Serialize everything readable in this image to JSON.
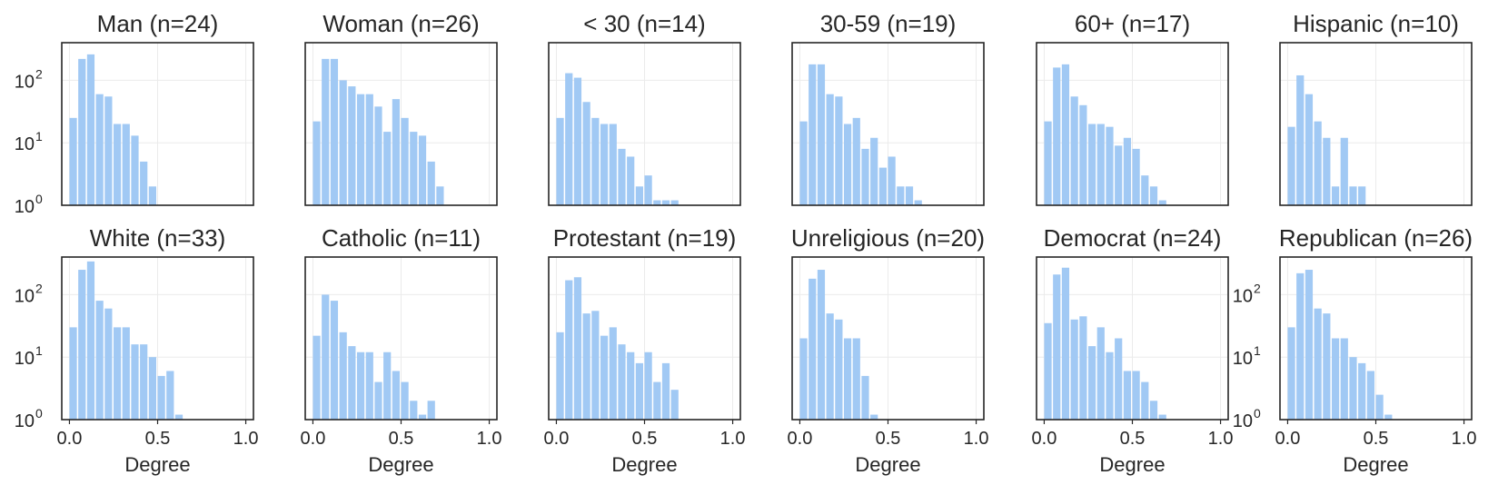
{
  "colors": {
    "bar": "#a1c9f4",
    "frame": "#262626",
    "grid": "#ebebeb"
  },
  "chart_data": [
    {
      "type": "bar",
      "title": "Man (n=24)",
      "xlabel": "",
      "ylabel": "",
      "yscale": "log",
      "xlim": [
        0,
        1
      ],
      "ylim": [
        1,
        400
      ],
      "grid": true,
      "bin_width": 0.05,
      "x_start": 0.0,
      "values": [
        25,
        220,
        260,
        60,
        55,
        20,
        20,
        13,
        5,
        2
      ],
      "x_ticks": [
        0.0,
        0.5,
        1.0
      ],
      "x_tick_labels": [],
      "y_ticks": [
        1,
        10,
        100
      ],
      "y_tick_labels": [
        "10^0",
        "10^1",
        "10^2"
      ]
    },
    {
      "type": "bar",
      "title": "Woman (n=26)",
      "xlabel": "",
      "ylabel": "",
      "yscale": "log",
      "xlim": [
        0,
        1
      ],
      "ylim": [
        1,
        400
      ],
      "grid": true,
      "bin_width": 0.05,
      "x_start": 0.0,
      "values": [
        22,
        220,
        220,
        100,
        80,
        60,
        60,
        38,
        15,
        50,
        25,
        15,
        13,
        5,
        2
      ],
      "x_ticks": [
        0.0,
        0.5,
        1.0
      ],
      "x_tick_labels": [],
      "y_ticks": [
        1,
        10,
        100
      ],
      "y_tick_labels": []
    },
    {
      "type": "bar",
      "title": "< 30 (n=14)",
      "xlabel": "",
      "ylabel": "",
      "yscale": "log",
      "xlim": [
        0,
        1
      ],
      "ylim": [
        1,
        400
      ],
      "grid": true,
      "bin_width": 0.05,
      "x_start": 0.0,
      "values": [
        25,
        130,
        110,
        45,
        25,
        20,
        20,
        8,
        6,
        2,
        3,
        1.2,
        1.2,
        1.2
      ],
      "x_ticks": [
        0.0,
        0.5,
        1.0
      ],
      "x_tick_labels": [],
      "y_ticks": [
        1,
        10,
        100
      ],
      "y_tick_labels": []
    },
    {
      "type": "bar",
      "title": "30-59 (n=19)",
      "xlabel": "",
      "ylabel": "",
      "yscale": "log",
      "xlim": [
        0,
        1
      ],
      "ylim": [
        1,
        400
      ],
      "grid": true,
      "bin_width": 0.05,
      "x_start": 0.0,
      "values": [
        22,
        180,
        180,
        60,
        55,
        20,
        25,
        8,
        12,
        4,
        6,
        2,
        2,
        1.2
      ],
      "x_ticks": [
        0.0,
        0.5,
        1.0
      ],
      "x_tick_labels": [],
      "y_ticks": [
        1,
        10,
        100
      ],
      "y_tick_labels": []
    },
    {
      "type": "bar",
      "title": "60+ (n=17)",
      "xlabel": "",
      "ylabel": "",
      "yscale": "log",
      "xlim": [
        0,
        1
      ],
      "ylim": [
        1,
        400
      ],
      "grid": true,
      "bin_width": 0.05,
      "x_start": 0.0,
      "values": [
        22,
        160,
        180,
        55,
        40,
        20,
        20,
        18,
        9,
        12,
        8,
        3,
        2,
        1.2
      ],
      "x_ticks": [
        0.0,
        0.5,
        1.0
      ],
      "x_tick_labels": [],
      "y_ticks": [
        1,
        10,
        100
      ],
      "y_tick_labels": []
    },
    {
      "type": "bar",
      "title": "Hispanic (n=10)",
      "xlabel": "",
      "ylabel": "",
      "yscale": "log",
      "xlim": [
        0,
        1
      ],
      "ylim": [
        1,
        400
      ],
      "grid": true,
      "bin_width": 0.05,
      "x_start": 0.0,
      "values": [
        18,
        120,
        60,
        22,
        12,
        2,
        12,
        2,
        2
      ],
      "x_ticks": [
        0.0,
        0.5,
        1.0
      ],
      "x_tick_labels": [],
      "y_ticks": [
        1,
        10,
        100
      ],
      "y_tick_labels": []
    },
    {
      "type": "bar",
      "title": "White (n=33)",
      "xlabel": "Degree",
      "ylabel": "",
      "yscale": "log",
      "xlim": [
        0,
        1
      ],
      "ylim": [
        1,
        400
      ],
      "grid": true,
      "bin_width": 0.05,
      "x_start": 0.0,
      "values": [
        30,
        250,
        340,
        80,
        60,
        30,
        30,
        16,
        16,
        10,
        5,
        6,
        1.2
      ],
      "x_ticks": [
        0.0,
        0.5,
        1.0
      ],
      "x_tick_labels": [
        "0.0",
        "0.5",
        "1.0"
      ],
      "y_ticks": [
        1,
        10,
        100
      ],
      "y_tick_labels": [
        "10^0",
        "10^1",
        "10^2"
      ]
    },
    {
      "type": "bar",
      "title": "Catholic (n=11)",
      "xlabel": "Degree",
      "ylabel": "",
      "yscale": "log",
      "xlim": [
        0,
        1
      ],
      "ylim": [
        1,
        400
      ],
      "grid": true,
      "bin_width": 0.05,
      "x_start": 0.0,
      "values": [
        22,
        100,
        80,
        25,
        15,
        12,
        12,
        4,
        12,
        6,
        4,
        2,
        1.2,
        2
      ],
      "x_ticks": [
        0.0,
        0.5,
        1.0
      ],
      "x_tick_labels": [
        "0.0",
        "0.5",
        "1.0"
      ],
      "y_ticks": [
        1,
        10,
        100
      ],
      "y_tick_labels": []
    },
    {
      "type": "bar",
      "title": "Protestant (n=19)",
      "xlabel": "Degree",
      "ylabel": "",
      "yscale": "log",
      "xlim": [
        0,
        1
      ],
      "ylim": [
        1,
        400
      ],
      "grid": true,
      "bin_width": 0.05,
      "x_start": 0.0,
      "values": [
        25,
        170,
        190,
        50,
        55,
        22,
        30,
        16,
        12,
        8,
        12,
        4,
        8,
        3
      ],
      "x_ticks": [
        0.0,
        0.5,
        1.0
      ],
      "x_tick_labels": [
        "0.0",
        "0.5",
        "1.0"
      ],
      "y_ticks": [
        1,
        10,
        100
      ],
      "y_tick_labels": []
    },
    {
      "type": "bar",
      "title": "Unreligious (n=20)",
      "xlabel": "Degree",
      "ylabel": "",
      "yscale": "log",
      "xlim": [
        0,
        1
      ],
      "ylim": [
        1,
        400
      ],
      "grid": true,
      "bin_width": 0.05,
      "x_start": 0.0,
      "values": [
        20,
        180,
        250,
        50,
        40,
        20,
        20,
        5,
        1.2
      ],
      "x_ticks": [
        0.0,
        0.5,
        1.0
      ],
      "x_tick_labels": [
        "0.0",
        "0.5",
        "1.0"
      ],
      "y_ticks": [
        1,
        10,
        100
      ],
      "y_tick_labels": []
    },
    {
      "type": "bar",
      "title": "Democrat (n=24)",
      "xlabel": "Degree",
      "ylabel": "",
      "yscale": "log",
      "xlim": [
        0,
        1
      ],
      "ylim": [
        1,
        400
      ],
      "grid": true,
      "bin_width": 0.05,
      "x_start": 0.0,
      "values": [
        35,
        210,
        270,
        40,
        45,
        15,
        30,
        12,
        20,
        6,
        6,
        4,
        2,
        1.2
      ],
      "x_ticks": [
        0.0,
        0.5,
        1.0
      ],
      "x_tick_labels": [
        "0.0",
        "0.5",
        "1.0"
      ],
      "y_ticks": [
        1,
        10,
        100
      ],
      "y_tick_labels": []
    },
    {
      "type": "bar",
      "title": "Republican (n=26)",
      "xlabel": "Degree",
      "ylabel": "",
      "yscale": "log",
      "xlim": [
        0,
        1
      ],
      "ylim": [
        1,
        400
      ],
      "grid": true,
      "bin_width": 0.05,
      "x_start": 0.0,
      "values": [
        30,
        220,
        250,
        60,
        50,
        20,
        20,
        10,
        8,
        6,
        2.5,
        1.2
      ],
      "x_ticks": [
        0.0,
        0.5,
        1.0
      ],
      "x_tick_labels": [
        "0.0",
        "0.5",
        "1.0"
      ],
      "y_ticks": [
        1,
        10,
        100
      ],
      "y_tick_labels": [
        "10^0",
        "10^1",
        "10^2"
      ]
    }
  ]
}
